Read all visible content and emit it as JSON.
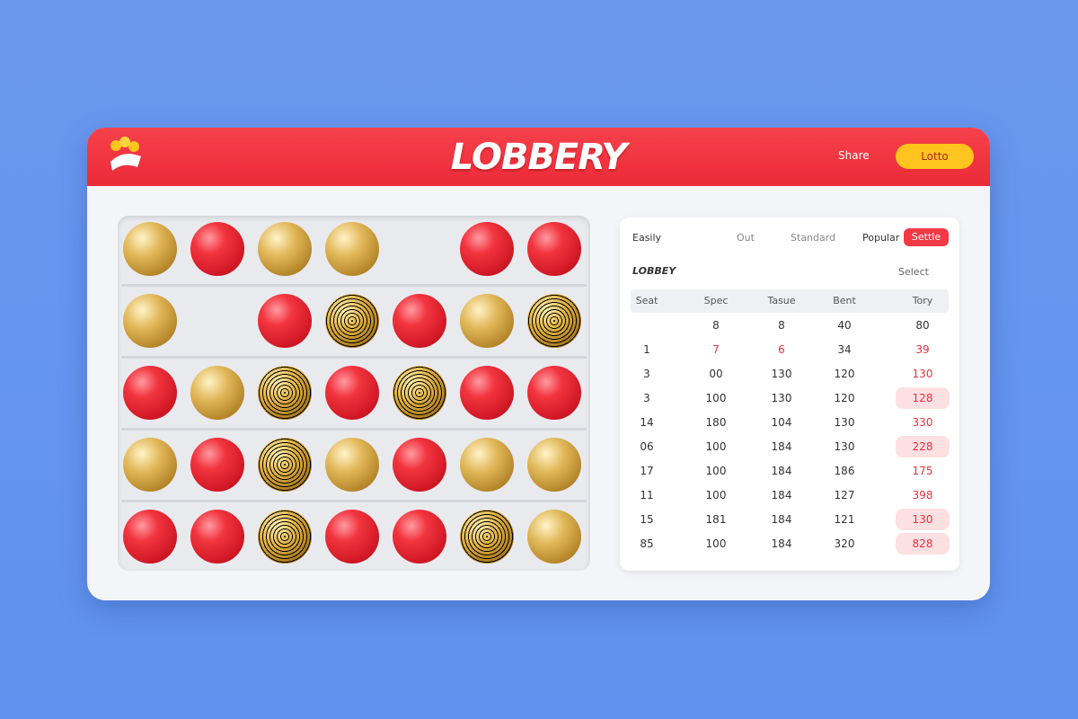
{
  "header": {
    "title": "LOBBERY",
    "share": "Share",
    "button": "Lotto"
  },
  "panel": {
    "title": "Easily",
    "tabs": [
      "Out",
      "Standard",
      "Popular",
      "Settle"
    ],
    "subtitle": "LOBBEY",
    "select": "Select"
  },
  "table": {
    "columns": [
      "Seat",
      "Spec",
      "Tasue",
      "Bent",
      "Tory"
    ],
    "rows": [
      [
        "",
        "8",
        "8",
        "40",
        "80"
      ],
      [
        "1",
        "7",
        "6",
        "34",
        "39"
      ],
      [
        "3",
        "00",
        "130",
        "120",
        "130"
      ],
      [
        "3",
        "100",
        "130",
        "120",
        "128"
      ],
      [
        "14",
        "180",
        "104",
        "130",
        "330"
      ],
      [
        "06",
        "100",
        "184",
        "130",
        "228"
      ],
      [
        "17",
        "100",
        "184",
        "186",
        "175"
      ],
      [
        "11",
        "100",
        "184",
        "127",
        "398"
      ],
      [
        "15",
        "181",
        "184",
        "121",
        "130"
      ],
      [
        "85",
        "100",
        "184",
        "320",
        "828"
      ]
    ]
  }
}
